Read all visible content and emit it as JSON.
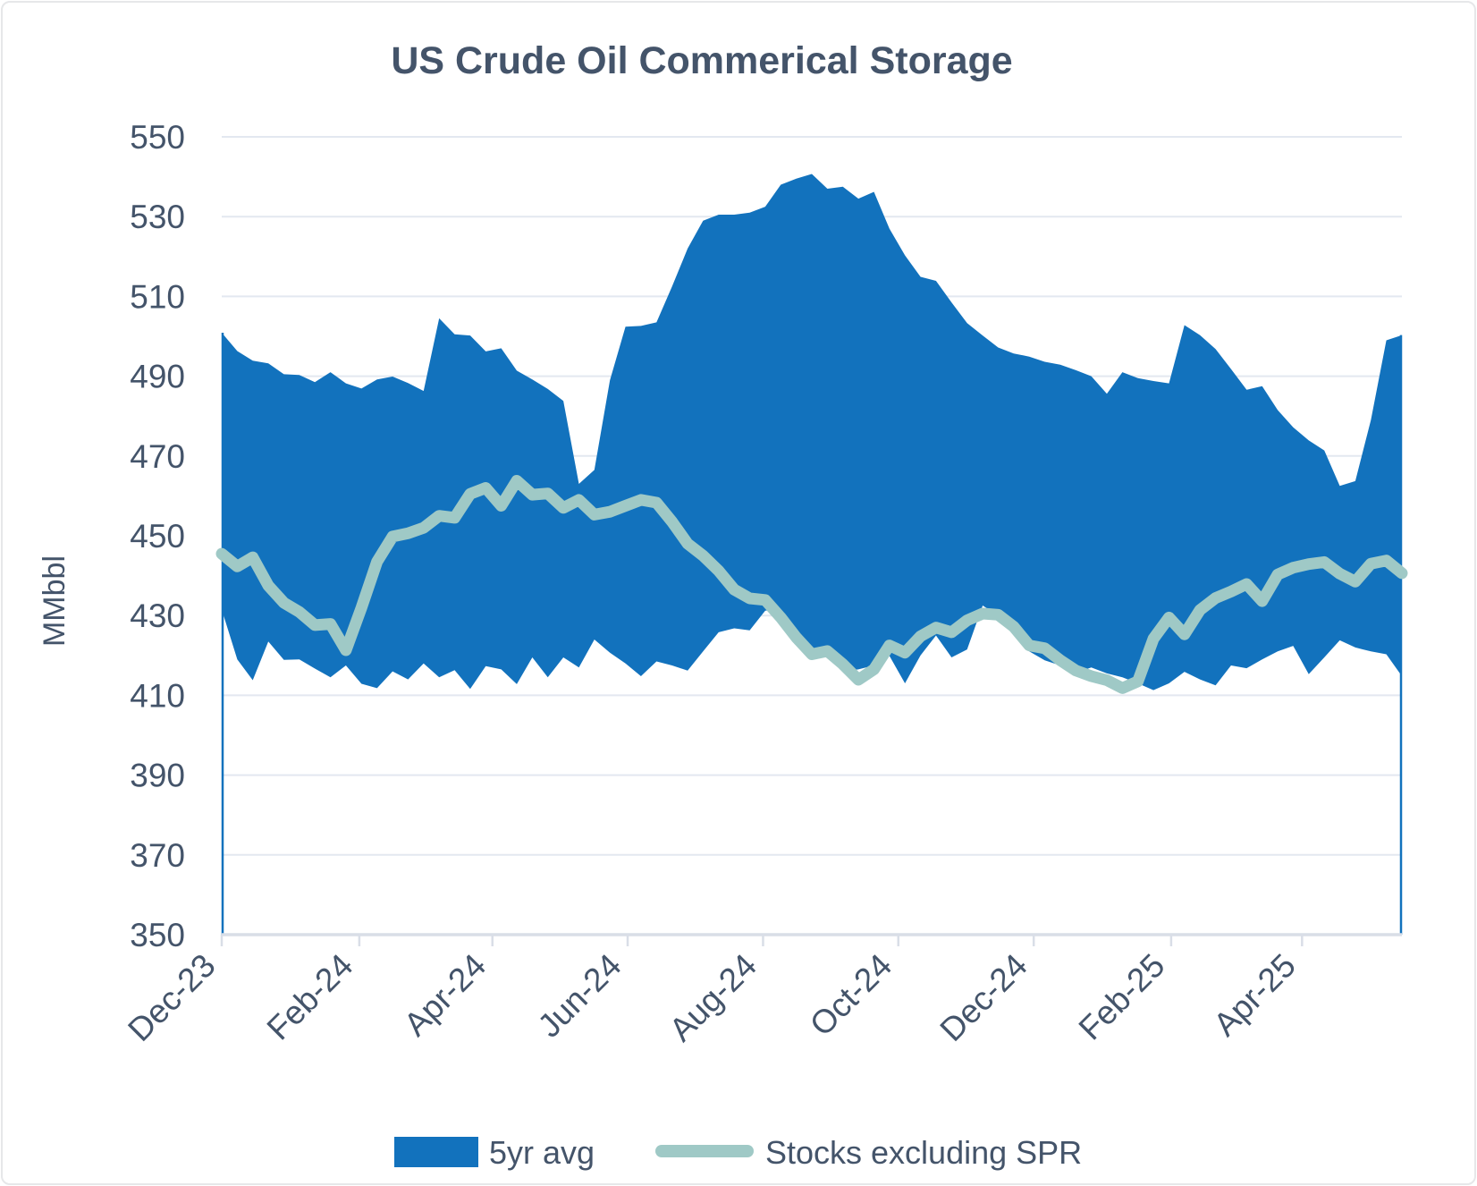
{
  "colors": {
    "band_fill": "#1272BD",
    "stocks_line": "#9FC9C6",
    "text": "#44546A",
    "gridline": "#E3E8F0",
    "axis_line": "#D9DEE7",
    "plot_edge_line": "#1272BD",
    "page_border": "#E6E7E9"
  },
  "chart_data": {
    "type": "area",
    "title": "US Crude Oil Commerical Storage",
    "ylabel": "MMbbl",
    "ylim": [
      350,
      550
    ],
    "ytick_step": 20,
    "grid": "horizontal-only",
    "legend_position": "bottom-center",
    "x_points": 77,
    "x_description": "weekly values, first point at Dec-23 tick, last point ~1.5 months after Apr-25 tick",
    "x_ticks": [
      {
        "label": "Dec-23",
        "week": 0
      },
      {
        "label": "Feb-24",
        "week": 8.86
      },
      {
        "label": "Apr-24",
        "week": 17.43
      },
      {
        "label": "Jun-24",
        "week": 26.14
      },
      {
        "label": "Aug-24",
        "week": 34.86
      },
      {
        "label": "Oct-24",
        "week": 43.57
      },
      {
        "label": "Dec-24",
        "week": 52.29
      },
      {
        "label": "Feb-25",
        "week": 61.14
      },
      {
        "label": "Apr-25",
        "week": 69.57
      }
    ],
    "band": {
      "name": "5yr avg",
      "upper": [
        500.9,
        496.3,
        493.9,
        493.2,
        490.5,
        490.3,
        488.5,
        491,
        488.2,
        486.9,
        489.2,
        489.9,
        488.3,
        486.3,
        504.5,
        500.5,
        500.2,
        496.2,
        497,
        491.4,
        489.2,
        486.8,
        483.8,
        463,
        466.5,
        489,
        502.4,
        502.6,
        503.5,
        512.5,
        522,
        529,
        530.5,
        530.5,
        531,
        532.5,
        538,
        539.5,
        540.7,
        537,
        537.5,
        534.5,
        536.2,
        527,
        520.3,
        514.9,
        513.9,
        508.5,
        503.3,
        500.2,
        497.2,
        495.7,
        494.9,
        493.6,
        492.9,
        491.5,
        490,
        485.6,
        491,
        489.5,
        488.8,
        488.2,
        502.8,
        500.3,
        496.8,
        491.8,
        486.6,
        487.5,
        481.5,
        477.2,
        473.9,
        471.4,
        462.5,
        463.7,
        479,
        499,
        500.3
      ],
      "lower": [
        431.5,
        419,
        413.8,
        423.5,
        418.9,
        419,
        416.7,
        414.5,
        417.5,
        412.9,
        411.8,
        416,
        414,
        418,
        414.5,
        416.3,
        411.6,
        417.3,
        416.5,
        412.8,
        419.5,
        414.5,
        419.5,
        417,
        424,
        420.7,
        418,
        414.8,
        418.5,
        417.5,
        416.2,
        421,
        425.8,
        426.8,
        426.3,
        431.2,
        431.6,
        426.5,
        421.5,
        419.8,
        416,
        416.5,
        417.5,
        419.9,
        413,
        420,
        425,
        419.5,
        421.5,
        432.5,
        430,
        425.5,
        421,
        418.8,
        417.5,
        415.6,
        417,
        415.5,
        414.5,
        413,
        411.3,
        413,
        415.9,
        414,
        412.5,
        417.5,
        416.8,
        419,
        421,
        422.4,
        415.3,
        419.5,
        423.8,
        422,
        421,
        420.3,
        414.8
      ]
    },
    "line": {
      "name": "Stocks excluding SPR",
      "values": [
        445.5,
        442.3,
        444.6,
        437.5,
        433.2,
        430.9,
        427.6,
        427.9,
        421.3,
        432,
        443.5,
        449.8,
        450.6,
        452,
        455,
        454.5,
        460.5,
        462,
        457.5,
        463.8,
        460.3,
        460.6,
        457,
        459,
        455.3,
        456,
        457.5,
        459,
        458.3,
        453.5,
        448,
        445,
        441.2,
        436.5,
        434.3,
        433.9,
        429.5,
        424.5,
        420.3,
        421.1,
        417.8,
        413.9,
        416.5,
        422.5,
        420.7,
        424.8,
        427,
        425.8,
        428.8,
        430.5,
        430.2,
        427.2,
        422.5,
        421.8,
        418.8,
        416.2,
        414.8,
        413.8,
        411.8,
        413.5,
        424.2,
        429.5,
        425.3,
        431.4,
        434.4,
        436,
        437.9,
        433.6,
        440.3,
        442,
        442.9,
        443.4,
        440.5,
        438.5,
        443,
        443.8,
        440.6
      ]
    }
  }
}
